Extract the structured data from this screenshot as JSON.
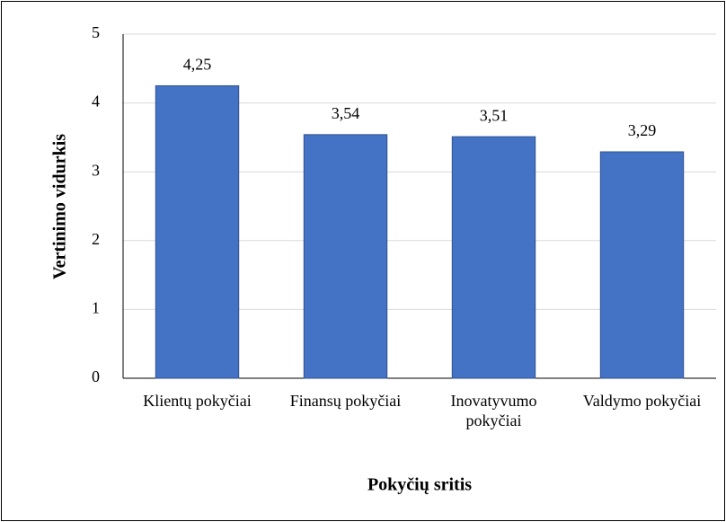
{
  "chart_data": {
    "type": "bar",
    "x_label": "Pokyčių sritis",
    "y_label": "Vertinimo vidurkis",
    "categories": [
      "Klientų pokyčiai",
      "Finansų pokyčiai",
      "Inovatyvumo pokyčiai",
      "Valdymo pokyčiai"
    ],
    "values": [
      4.25,
      3.54,
      3.51,
      3.29
    ],
    "value_labels": [
      "4,25",
      "3,54",
      "3,51",
      "3,29"
    ],
    "color": "#4472c4",
    "ylim": [
      0,
      5
    ],
    "yticks": [
      0,
      1,
      2,
      3,
      4,
      5
    ],
    "grid": true
  }
}
